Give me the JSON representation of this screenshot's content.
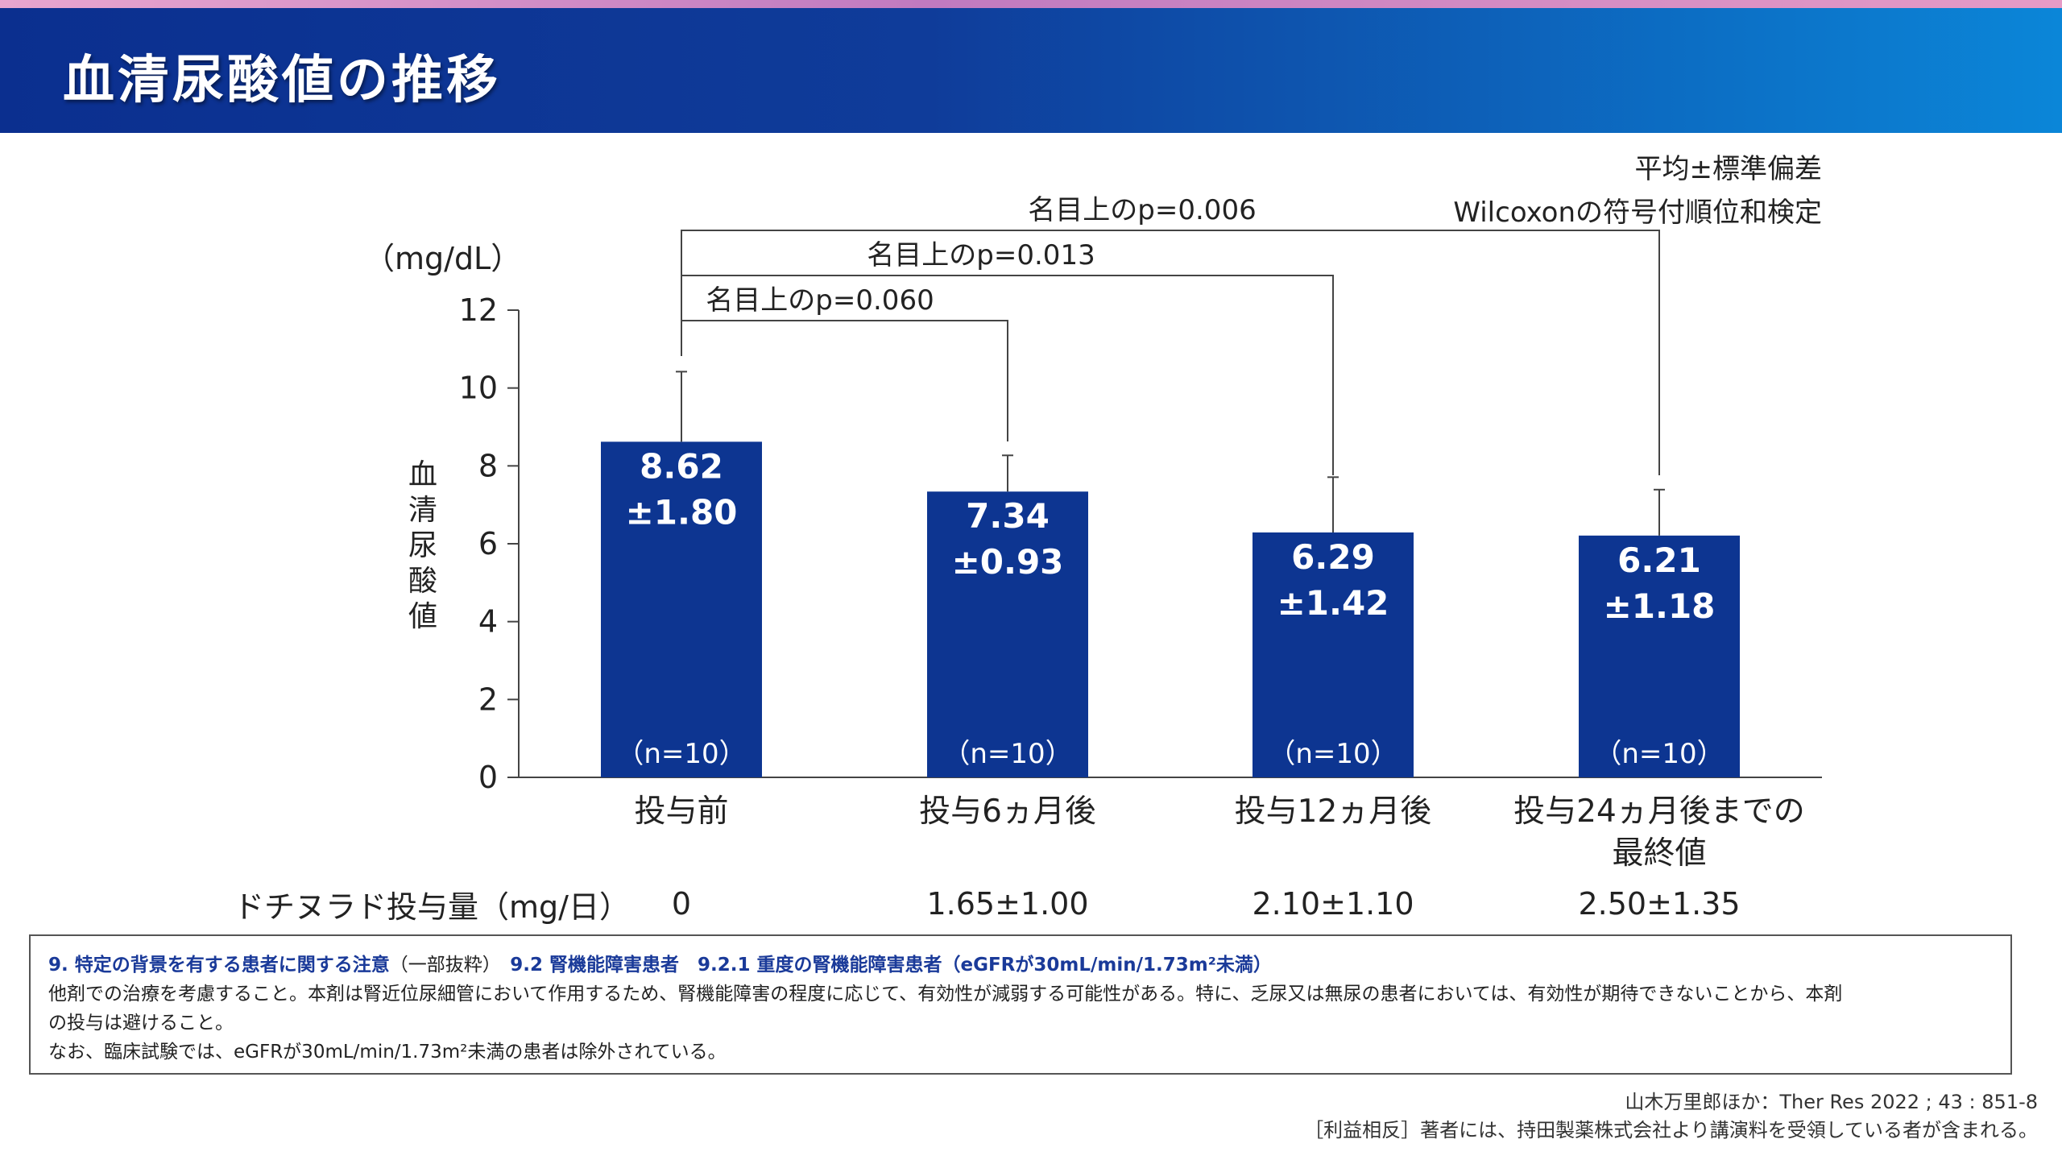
{
  "header": {
    "title": "血清尿酸値の推移"
  },
  "stats_note": {
    "line1": "平均±標準偏差",
    "line2": "Wilcoxonの符号付順位和検定"
  },
  "chart_data": {
    "type": "bar",
    "y_unit": "（mg/dL）",
    "ylabel": "血清尿酸値",
    "ylim": [
      0,
      12
    ],
    "y_ticks": [
      "0",
      "2",
      "4",
      "6",
      "8",
      "10",
      "12"
    ],
    "categories": [
      [
        "投与前"
      ],
      [
        "投与6ヵ月後"
      ],
      [
        "投与12ヵ月後"
      ],
      [
        "投与24ヵ月後までの",
        "最終値"
      ]
    ],
    "values": [
      8.62,
      7.34,
      6.29,
      6.21
    ],
    "sd": [
      1.8,
      0.93,
      1.42,
      1.18
    ],
    "value_labels": [
      "8.62",
      "7.34",
      "6.29",
      "6.21"
    ],
    "sd_labels": [
      "±1.80",
      "±0.93",
      "±1.42",
      "±1.18"
    ],
    "n_labels": [
      "（n=10）",
      "（n=10）",
      "（n=10）",
      "（n=10）"
    ],
    "bar_color": "#0d3591",
    "comparisons": [
      {
        "from": 0,
        "to": 1,
        "label": "名目上のp=0.060"
      },
      {
        "from": 0,
        "to": 2,
        "label": "名目上のp=0.013"
      },
      {
        "from": 0,
        "to": 3,
        "label": "名目上のp=0.006"
      }
    ]
  },
  "dose": {
    "label": "ドチヌラド投与量（mg/日）",
    "values": [
      "0",
      "1.65±1.00",
      "2.10±1.10",
      "2.50±1.35"
    ]
  },
  "note": {
    "heading_part1": "9. 特定の背景を有する患者に関する注意",
    "heading_part2": "（一部抜粋）",
    "heading_part3": "9.2 腎機能障害患者　9.2.1 重度の腎機能障害患者（eGFRが30mL/min/1.73m²未満）",
    "line1": "他剤での治療を考慮すること。本剤は腎近位尿細管において作用するため、腎機能障害の程度に応じて、有効性が減弱する可能性がある。特に、乏尿又は無尿の患者においては、有効性が期待できないことから、本剤",
    "line2": "の投与は避けること。",
    "line3": "なお、臨床試験では、eGFRが30mL/min/1.73m²未満の患者は除外されている。"
  },
  "footer": {
    "citation": "山木万里郎ほか：Ther Res 2022 ; 43 : 851-8",
    "coi": "［利益相反］著者には、持田製薬株式会社より講演料を受領している者が含まれる。"
  }
}
